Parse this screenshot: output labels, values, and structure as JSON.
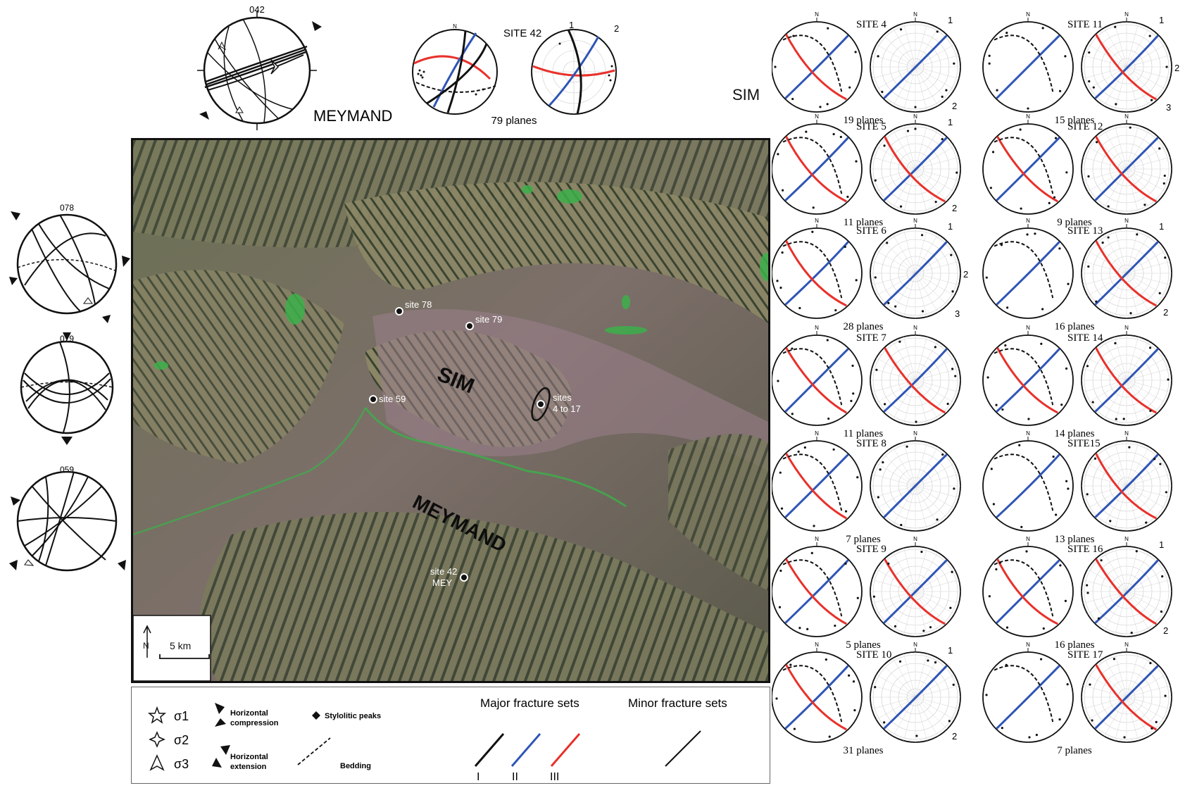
{
  "top_left": {
    "azimuth": "042",
    "region": "MEYMAND"
  },
  "site42": {
    "title": "SITE 42",
    "count": "79 planes",
    "set_labels": [
      "1",
      "2"
    ]
  },
  "left_nets": [
    {
      "azimuth": "078"
    },
    {
      "azimuth": "079"
    },
    {
      "azimuth": "059"
    }
  ],
  "sim_label": "SIM",
  "map": {
    "anticline_sim": "SIM",
    "anticline_meymand": "MEYMAND",
    "north_letter": "N",
    "scale": "5 km",
    "sites": [
      {
        "label": "site 78"
      },
      {
        "label": "site 79"
      },
      {
        "label": "site 59"
      },
      {
        "label": "sites"
      },
      {
        "label": "4 to 17"
      },
      {
        "label": "site 42"
      },
      {
        "label": "MEY"
      }
    ],
    "colors": {
      "land": "#6f6a58",
      "ridge": "#8a8a6a",
      "shadow": "#2f3a2a",
      "vegetation": "#3cb04a",
      "valley": "#9a7f8c"
    }
  },
  "legend": {
    "sigma1": "σ1",
    "sigma2": "σ2",
    "sigma3": "σ3",
    "hcomp": [
      "Horizontal",
      "compression"
    ],
    "hext": [
      "Horizontal",
      "extension"
    ],
    "stylolitic": "Stylolitic peaks",
    "bedding": "Bedding",
    "major": "Major fracture sets",
    "minor": "Minor fracture sets",
    "sets": [
      "I",
      "II",
      "III"
    ],
    "colors": {
      "I": "#111111",
      "II": "#2f55b5",
      "III": "#e8312b"
    }
  },
  "north": "N",
  "sites": [
    {
      "title": "SITE 4",
      "count": "19 planes",
      "labels": [
        "1",
        "2"
      ]
    },
    {
      "title": "SITE 11",
      "count": "15 planes",
      "labels": [
        "1",
        "2",
        "3"
      ]
    },
    {
      "title": "SITE 5",
      "count": "11 planes",
      "labels": [
        "1",
        "2"
      ]
    },
    {
      "title": "SITE 12",
      "count": "9 planes",
      "labels": []
    },
    {
      "title": "SITE 6",
      "count": "28 planes",
      "labels": [
        "1",
        "2",
        "3"
      ]
    },
    {
      "title": "SITE 13",
      "count": "16 planes",
      "labels": [
        "1",
        "2"
      ]
    },
    {
      "title": "SITE 7",
      "count": "11 planes",
      "labels": []
    },
    {
      "title": "SITE 14",
      "count": "14 planes",
      "labels": []
    },
    {
      "title": "SITE 8",
      "count": "7 planes",
      "labels": []
    },
    {
      "title": "SITE15",
      "count": "13 planes",
      "labels": []
    },
    {
      "title": "SITE 9",
      "count": "5 planes",
      "labels": []
    },
    {
      "title": "SITE 16",
      "count": "16 planes",
      "labels": [
        "1",
        "2"
      ]
    },
    {
      "title": "SITE 10",
      "count": "31 planes",
      "labels": [
        "1",
        "2"
      ]
    },
    {
      "title": "SITE 17",
      "count": "7 planes",
      "labels": []
    }
  ]
}
